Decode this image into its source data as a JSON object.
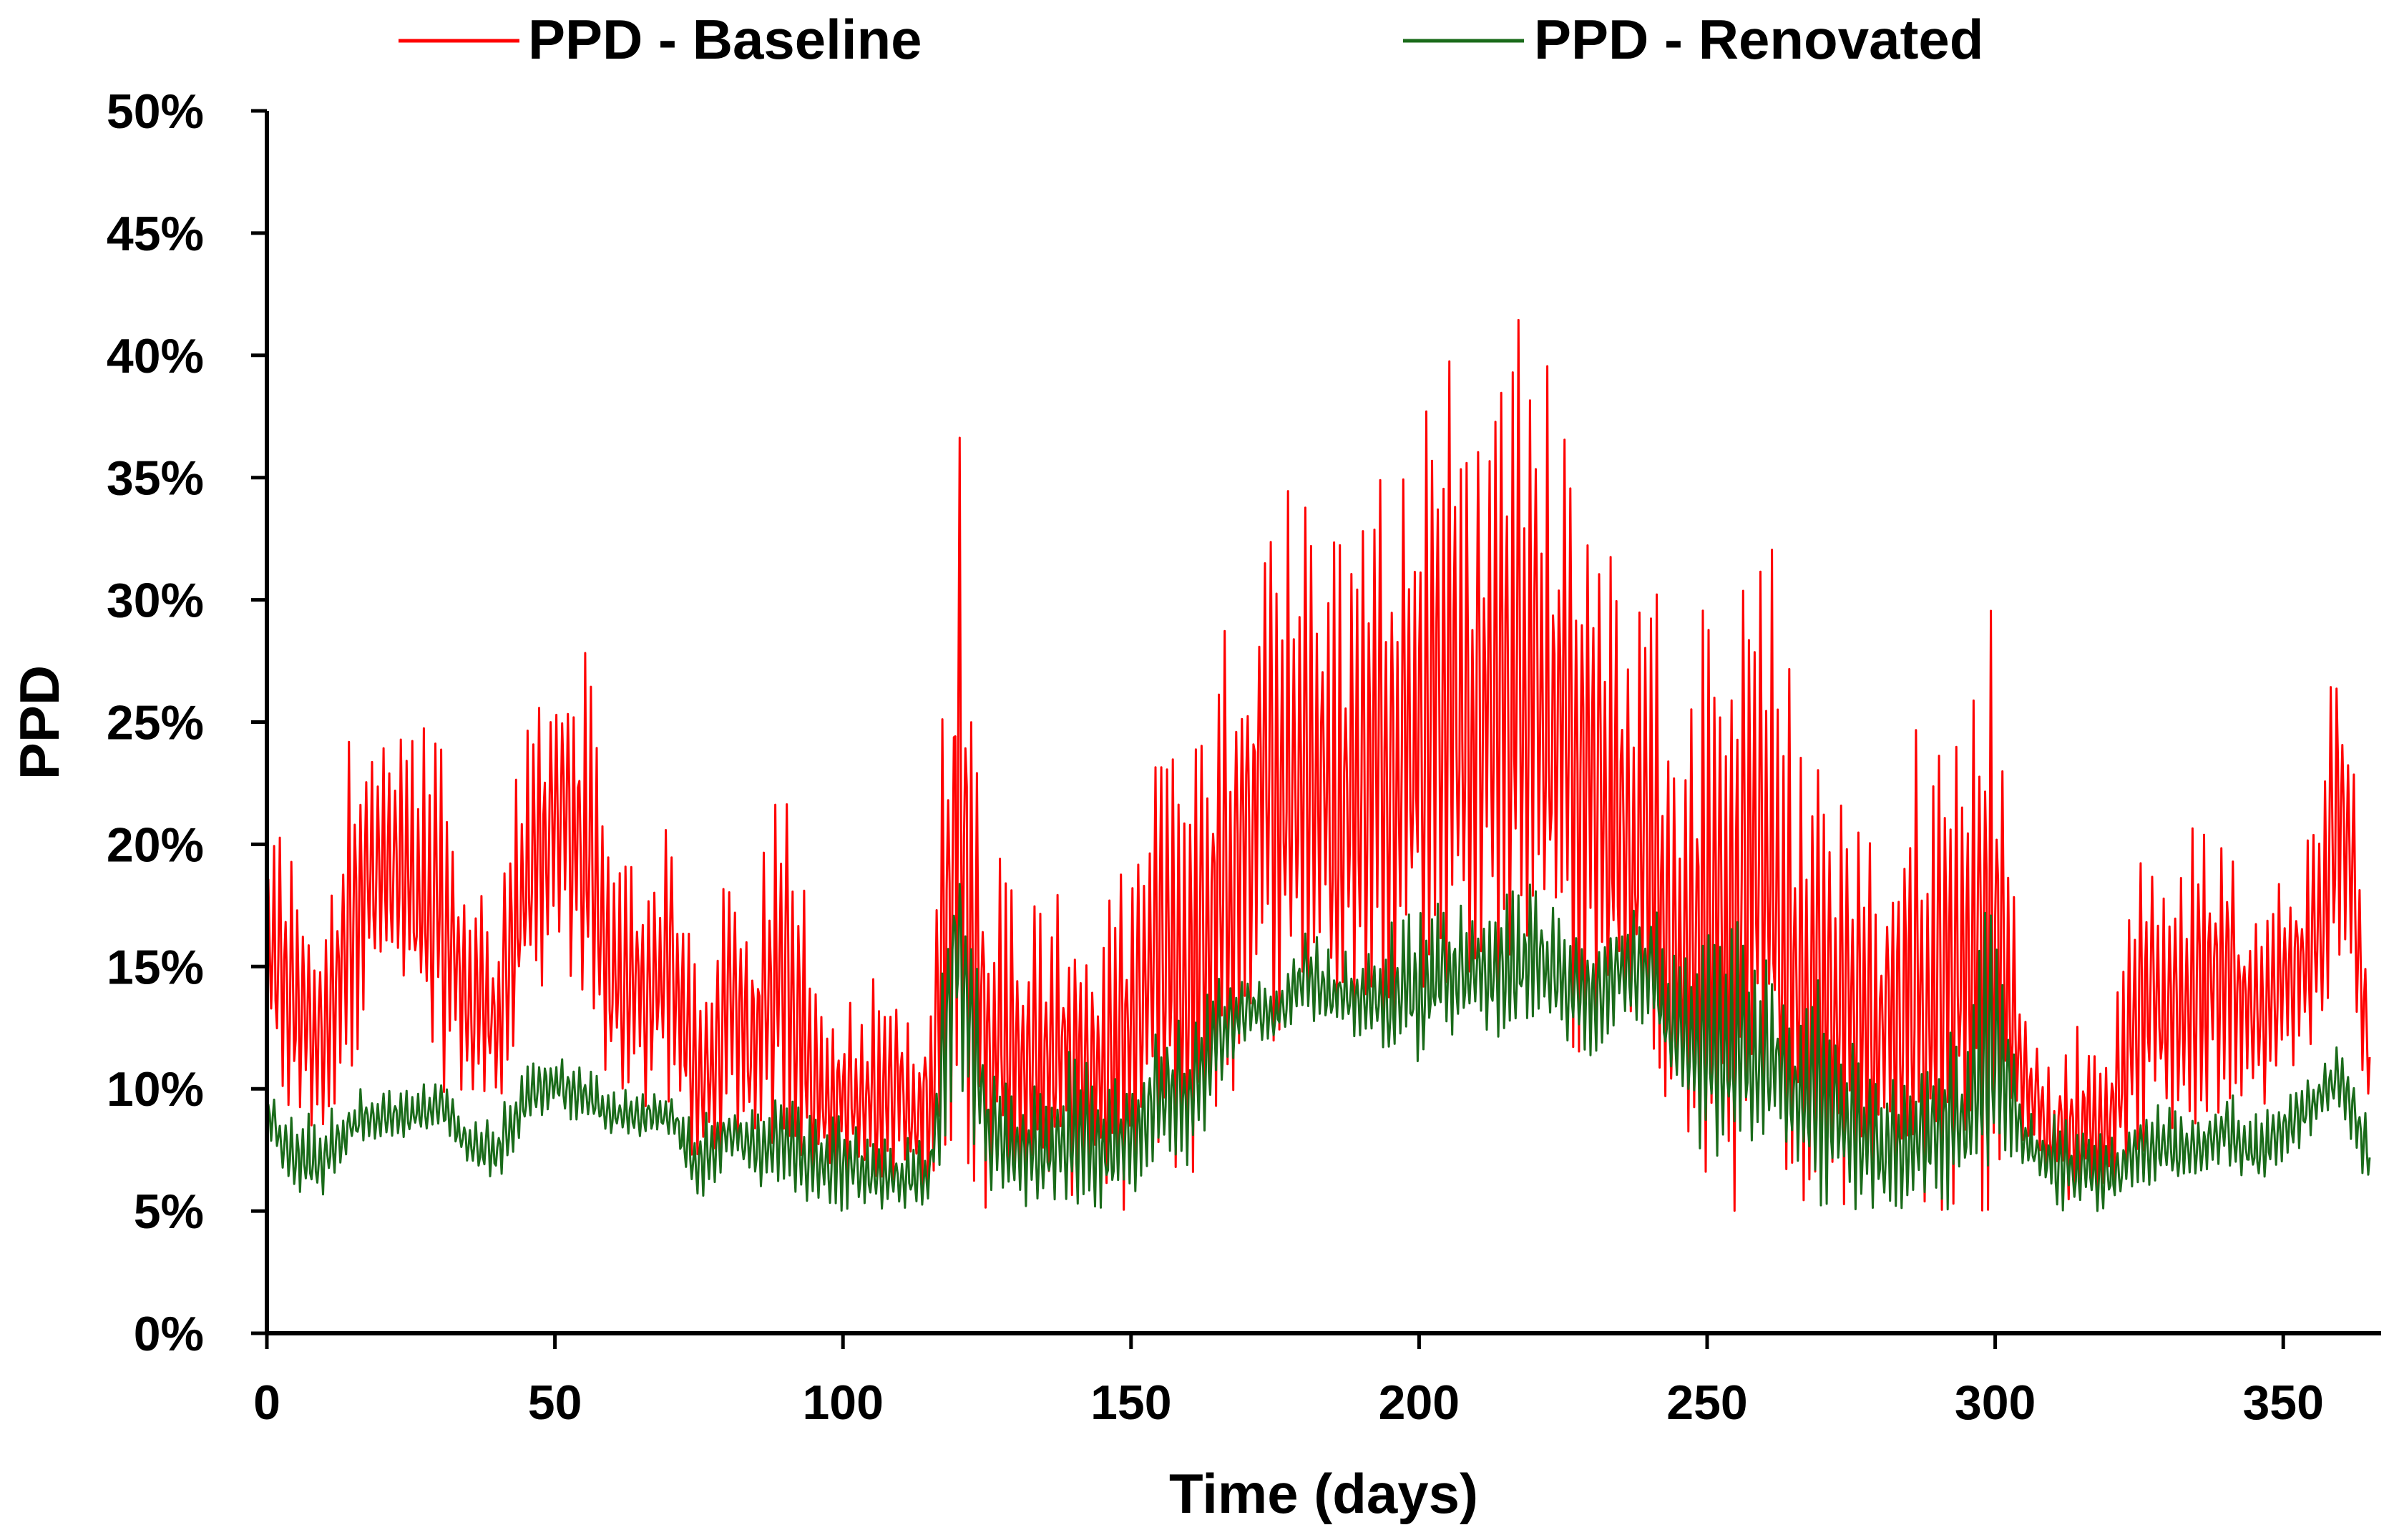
{
  "chart_data": {
    "type": "line",
    "title": "",
    "xlabel": "Time (days)",
    "ylabel": "PPD",
    "xlim": [
      0,
      365
    ],
    "ylim": [
      0,
      0.5
    ],
    "x_ticks": [
      0,
      50,
      100,
      150,
      200,
      250,
      300,
      350
    ],
    "x_tick_labels": [
      "0",
      "50",
      "100",
      "150",
      "200",
      "250",
      "300",
      "350"
    ],
    "y_ticks": [
      0,
      0.05,
      0.1,
      0.15,
      0.2,
      0.25,
      0.3,
      0.35,
      0.4,
      0.45,
      0.5
    ],
    "y_tick_labels": [
      "0%",
      "5%",
      "10%",
      "15%",
      "20%",
      "25%",
      "30%",
      "35%",
      "40%",
      "45%",
      "50%"
    ],
    "grid": false,
    "legend_position": "top",
    "colors": {
      "baseline": "#ff0000",
      "renovated": "#1a6b1a",
      "axis": "#000000"
    },
    "x": [
      0,
      5,
      10,
      15,
      20,
      25,
      30,
      35,
      40,
      45,
      50,
      55,
      60,
      65,
      70,
      75,
      80,
      85,
      90,
      95,
      100,
      105,
      110,
      115,
      120,
      125,
      130,
      135,
      140,
      145,
      150,
      155,
      160,
      165,
      170,
      175,
      180,
      185,
      190,
      195,
      200,
      205,
      210,
      215,
      220,
      225,
      230,
      235,
      240,
      245,
      250,
      255,
      260,
      265,
      270,
      275,
      280,
      285,
      290,
      295,
      300,
      305,
      310,
      315,
      320,
      325,
      330,
      335,
      340,
      345,
      350,
      355,
      360,
      365
    ],
    "series": [
      {
        "name": "PPD - Baseline",
        "color": "#ff0000",
        "daily_max": [
          0.22,
          0.2,
          0.16,
          0.26,
          0.24,
          0.26,
          0.25,
          0.19,
          0.18,
          0.26,
          0.29,
          0.29,
          0.19,
          0.2,
          0.23,
          0.14,
          0.19,
          0.18,
          0.25,
          0.15,
          0.14,
          0.15,
          0.15,
          0.14,
          0.4,
          0.21,
          0.19,
          0.18,
          0.19,
          0.17,
          0.2,
          0.26,
          0.24,
          0.28,
          0.32,
          0.35,
          0.37,
          0.33,
          0.34,
          0.37,
          0.38,
          0.41,
          0.38,
          0.41,
          0.44,
          0.37,
          0.36,
          0.33,
          0.33,
          0.25,
          0.31,
          0.31,
          0.36,
          0.26,
          0.23,
          0.24,
          0.2,
          0.25,
          0.25,
          0.29,
          0.3,
          0.13,
          0.11,
          0.13,
          0.12,
          0.2,
          0.2,
          0.21,
          0.22,
          0.17,
          0.19,
          0.21,
          0.31,
          0.15
        ],
        "daily_min": [
          0.1,
          0.08,
          0.08,
          0.11,
          0.15,
          0.12,
          0.1,
          0.09,
          0.09,
          0.12,
          0.15,
          0.12,
          0.1,
          0.09,
          0.09,
          0.06,
          0.08,
          0.07,
          0.08,
          0.06,
          0.06,
          0.05,
          0.05,
          0.05,
          0.06,
          0.05,
          0.05,
          0.05,
          0.05,
          0.05,
          0.05,
          0.07,
          0.06,
          0.08,
          0.1,
          0.12,
          0.13,
          0.12,
          0.13,
          0.13,
          0.14,
          0.14,
          0.13,
          0.14,
          0.15,
          0.12,
          0.1,
          0.1,
          0.09,
          0.06,
          0.05,
          0.05,
          0.08,
          0.05,
          0.05,
          0.05,
          0.05,
          0.05,
          0.05,
          0.05,
          0.05,
          0.08,
          0.06,
          0.05,
          0.06,
          0.07,
          0.08,
          0.08,
          0.09,
          0.09,
          0.1,
          0.11,
          0.14,
          0.08
        ]
      },
      {
        "name": "PPD - Renovated",
        "color": "#1a6b1a",
        "daily_max": [
          0.1,
          0.09,
          0.09,
          0.1,
          0.1,
          0.1,
          0.105,
          0.09,
          0.09,
          0.11,
          0.12,
          0.11,
          0.1,
          0.1,
          0.1,
          0.09,
          0.1,
          0.09,
          0.1,
          0.09,
          0.09,
          0.085,
          0.08,
          0.08,
          0.24,
          0.12,
          0.1,
          0.11,
          0.12,
          0.1,
          0.11,
          0.14,
          0.13,
          0.145,
          0.15,
          0.14,
          0.165,
          0.16,
          0.155,
          0.17,
          0.18,
          0.18,
          0.175,
          0.18,
          0.185,
          0.17,
          0.165,
          0.17,
          0.18,
          0.15,
          0.165,
          0.17,
          0.155,
          0.14,
          0.15,
          0.12,
          0.1,
          0.11,
          0.12,
          0.13,
          0.195,
          0.09,
          0.09,
          0.085,
          0.08,
          0.09,
          0.095,
          0.09,
          0.1,
          0.09,
          0.1,
          0.11,
          0.12,
          0.09
        ],
        "daily_min": [
          0.08,
          0.055,
          0.055,
          0.075,
          0.08,
          0.08,
          0.085,
          0.065,
          0.06,
          0.085,
          0.09,
          0.085,
          0.08,
          0.08,
          0.08,
          0.05,
          0.07,
          0.06,
          0.06,
          0.05,
          0.05,
          0.05,
          0.05,
          0.05,
          0.1,
          0.05,
          0.05,
          0.05,
          0.05,
          0.05,
          0.05,
          0.07,
          0.06,
          0.1,
          0.12,
          0.12,
          0.13,
          0.12,
          0.12,
          0.11,
          0.11,
          0.12,
          0.12,
          0.12,
          0.13,
          0.12,
          0.11,
          0.13,
          0.12,
          0.09,
          0.07,
          0.07,
          0.08,
          0.06,
          0.05,
          0.05,
          0.05,
          0.05,
          0.05,
          0.05,
          0.06,
          0.07,
          0.05,
          0.05,
          0.05,
          0.06,
          0.06,
          0.06,
          0.07,
          0.06,
          0.07,
          0.08,
          0.09,
          0.055
        ]
      }
    ]
  }
}
